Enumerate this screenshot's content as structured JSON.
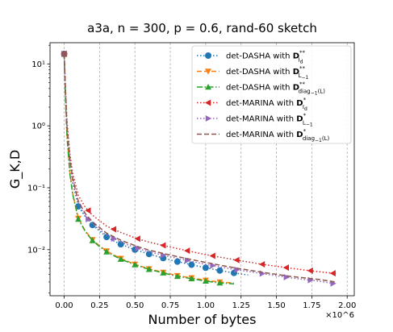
{
  "chart_data": {
    "type": "line",
    "title": "a3a, n = 300, p = 0.6, rand-60 sketch",
    "xlabel": "Number of bytes",
    "ylabel": "G_K,D",
    "x_scale_note": "×10^6",
    "x_unit_multiplier": 1000000,
    "xlim": [
      -0.1,
      2.05
    ],
    "ylim": [
      0.0018,
      22
    ],
    "y_scale": "log",
    "x_ticks": [
      0.0,
      0.25,
      0.5,
      0.75,
      1.0,
      1.25,
      1.5,
      1.75,
      2.0
    ],
    "x_tick_labels": [
      "0.00",
      "0.25",
      "0.50",
      "0.75",
      "1.00",
      "1.25",
      "1.50",
      "1.75",
      "2.00"
    ],
    "y_ticks": [
      10,
      1,
      0.1,
      0.01
    ],
    "y_tick_labels": [
      "10¹",
      "10⁰",
      "10⁻¹",
      "10⁻²"
    ],
    "grid": "vertical-dashed",
    "legend_position": "top-right",
    "series": [
      {
        "name": "det-DASHA with D**_Id",
        "color": "#1f77b4",
        "linestyle": "dotted",
        "marker": "circle",
        "x": [
          0.0,
          0.01,
          0.02,
          0.04,
          0.06,
          0.1,
          0.15,
          0.2,
          0.25,
          0.3,
          0.35,
          0.4,
          0.5,
          0.6,
          0.7,
          0.8,
          0.9,
          1.0,
          1.1,
          1.2,
          1.3
        ],
        "y": [
          14.5,
          3.0,
          0.9,
          0.26,
          0.12,
          0.05,
          0.034,
          0.025,
          0.02,
          0.016,
          0.0138,
          0.0122,
          0.01,
          0.0085,
          0.0073,
          0.0064,
          0.0057,
          0.0051,
          0.0046,
          0.0042,
          0.0039
        ],
        "marker_x": [
          0.0,
          0.1,
          0.2,
          0.3,
          0.4,
          0.5,
          0.6,
          0.7,
          0.8,
          0.9,
          1.0,
          1.1,
          1.2
        ]
      },
      {
        "name": "det-DASHA with D**_L-1",
        "color": "#ff7f0e",
        "linestyle": "dashed",
        "marker": "triangle-down",
        "x": [
          0.0,
          0.01,
          0.02,
          0.04,
          0.06,
          0.1,
          0.15,
          0.2,
          0.25,
          0.3,
          0.35,
          0.4,
          0.5,
          0.6,
          0.7,
          0.8,
          0.9,
          1.0,
          1.1,
          1.2
        ],
        "y": [
          14.5,
          2.5,
          0.7,
          0.18,
          0.08,
          0.032,
          0.02,
          0.0145,
          0.0115,
          0.0095,
          0.0082,
          0.0072,
          0.0058,
          0.0049,
          0.0043,
          0.0038,
          0.0035,
          0.0032,
          0.003,
          0.0029
        ],
        "marker_x": [
          0.0,
          0.1,
          0.2,
          0.3,
          0.4,
          0.5,
          0.6,
          0.7,
          0.8,
          0.9,
          1.0,
          1.1
        ]
      },
      {
        "name": "det-DASHA with D**_diag-1(L)",
        "color": "#2ca02c",
        "linestyle": "dashdot",
        "marker": "triangle-up",
        "x": [
          0.0,
          0.01,
          0.02,
          0.04,
          0.06,
          0.1,
          0.15,
          0.2,
          0.25,
          0.3,
          0.35,
          0.4,
          0.5,
          0.6,
          0.7,
          0.8,
          0.9,
          1.0,
          1.1,
          1.2
        ],
        "y": [
          14.5,
          2.4,
          0.68,
          0.17,
          0.078,
          0.031,
          0.0195,
          0.014,
          0.0112,
          0.0092,
          0.008,
          0.007,
          0.0057,
          0.0048,
          0.0042,
          0.0037,
          0.0034,
          0.0031,
          0.0029,
          0.0028
        ],
        "marker_x": [
          0.0,
          0.1,
          0.2,
          0.3,
          0.4,
          0.5,
          0.6,
          0.7,
          0.8,
          0.9,
          1.0,
          1.1
        ]
      },
      {
        "name": "det-MARINA with D*_Id",
        "color": "#d62728",
        "linestyle": "dotted",
        "marker": "triangle-left",
        "x": [
          0.0,
          0.01,
          0.02,
          0.04,
          0.06,
          0.1,
          0.15,
          0.2,
          0.3,
          0.4,
          0.5,
          0.6,
          0.8,
          1.0,
          1.2,
          1.4,
          1.6,
          1.8,
          1.92
        ],
        "y": [
          14.5,
          3.8,
          1.2,
          0.36,
          0.17,
          0.075,
          0.048,
          0.036,
          0.024,
          0.019,
          0.0155,
          0.0132,
          0.0104,
          0.0083,
          0.0069,
          0.0058,
          0.005,
          0.0044,
          0.0041
        ],
        "marker_x": [
          0.0,
          0.17,
          0.35,
          0.52,
          0.7,
          0.87,
          1.05,
          1.22,
          1.4,
          1.57,
          1.74,
          1.9
        ]
      },
      {
        "name": "det-MARINA with D*_L-1",
        "color": "#9467bd",
        "linestyle": "dotted",
        "marker": "triangle-right",
        "x": [
          0.0,
          0.01,
          0.02,
          0.04,
          0.06,
          0.1,
          0.15,
          0.2,
          0.3,
          0.4,
          0.5,
          0.6,
          0.8,
          1.0,
          1.2,
          1.4,
          1.6,
          1.8,
          1.92
        ],
        "y": [
          14.5,
          3.2,
          0.95,
          0.28,
          0.13,
          0.055,
          0.035,
          0.026,
          0.0172,
          0.0132,
          0.0108,
          0.0092,
          0.0072,
          0.0058,
          0.0048,
          0.0041,
          0.0035,
          0.0031,
          0.0028
        ],
        "marker_x": [
          0.0,
          0.17,
          0.35,
          0.52,
          0.7,
          0.87,
          1.05,
          1.22,
          1.4,
          1.57,
          1.74,
          1.9
        ]
      },
      {
        "name": "det-MARINA with D*_diag-1(L)",
        "color": "#8c564b",
        "linestyle": "dashed",
        "marker": "none",
        "x": [
          0.0,
          0.01,
          0.02,
          0.04,
          0.06,
          0.1,
          0.15,
          0.2,
          0.3,
          0.4,
          0.5,
          0.6,
          0.8,
          1.0,
          1.2,
          1.4,
          1.6,
          1.8,
          1.92
        ],
        "y": [
          14.5,
          3.3,
          1.0,
          0.3,
          0.14,
          0.06,
          0.038,
          0.028,
          0.0185,
          0.0142,
          0.0116,
          0.0098,
          0.0077,
          0.0062,
          0.0051,
          0.0043,
          0.0037,
          0.0033,
          0.003
        ],
        "marker_x": []
      }
    ]
  },
  "legend": [
    {
      "prefix": "det-DASHA with ",
      "bold": "D",
      "sup": "**",
      "sub": "I",
      "subsub": "d"
    },
    {
      "prefix": "det-DASHA with ",
      "bold": "D",
      "sup": "**",
      "sub": "L",
      "subsub": "−1"
    },
    {
      "prefix": "det-DASHA with ",
      "bold": "D",
      "sup": "**",
      "sub": "diag",
      "subsub": "−1",
      "subtail": "(L)"
    },
    {
      "prefix": "det-MARINA with ",
      "bold": "D",
      "sup": "*",
      "sub": "I",
      "subsub": "d"
    },
    {
      "prefix": "det-MARINA with ",
      "bold": "D",
      "sup": "*",
      "sub": "L",
      "subsub": "−1"
    },
    {
      "prefix": "det-MARINA with ",
      "bold": "D",
      "sup": "*",
      "sub": "diag",
      "subsub": "−1",
      "subtail": "(L)"
    }
  ]
}
